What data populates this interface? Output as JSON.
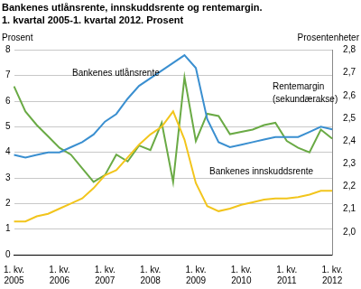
{
  "chart_data": {
    "type": "line",
    "title": "Bankenes utlånsrente, innskuddsrente og rentemargin.",
    "subtitle": "1. kvartal 2005-1. kvartal 2012. Prosent",
    "y_label": "Prosent",
    "y2_label": "Prosentenheter",
    "annotations": [
      "Bankenes utlånsrente",
      "Rentemargin",
      "(sekundærakse)",
      "Bankenes innskuddsrente"
    ],
    "categories": [
      "1. kv. 2005",
      null,
      null,
      null,
      "1. kv. 2006",
      null,
      null,
      null,
      "1. kv. 2007",
      null,
      null,
      null,
      "1. kv. 2008",
      null,
      null,
      null,
      "1. kv. 2009",
      null,
      null,
      null,
      "1. kv. 2010",
      null,
      null,
      null,
      "1. kv. 2011",
      null,
      null,
      null,
      "1. kv. 2012"
    ],
    "series": [
      {
        "name": "Bankenes utlånsrente",
        "color": "#3a8fd0",
        "marker": "none",
        "line_style": "solid",
        "values": [
          3.9,
          3.8,
          3.9,
          4.0,
          4.0,
          4.2,
          4.4,
          4.7,
          5.2,
          5.5,
          6.1,
          6.6,
          6.9,
          7.2,
          7.5,
          7.8,
          7.3,
          5.3,
          4.4,
          4.2,
          4.3,
          4.4,
          4.5,
          4.6,
          4.6,
          4.6,
          4.8,
          5.0,
          4.9
        ]
      },
      {
        "name": "Bankenes innskuddsrente",
        "color": "#f2c51c",
        "marker": "none",
        "line_style": "solid",
        "values": [
          1.3,
          1.3,
          1.5,
          1.6,
          1.8,
          2.0,
          2.2,
          2.6,
          3.1,
          3.3,
          3.8,
          4.3,
          4.7,
          5.0,
          5.6,
          4.5,
          2.8,
          1.9,
          1.7,
          1.8,
          1.95,
          2.05,
          2.15,
          2.2,
          2.2,
          2.25,
          2.35,
          2.5,
          2.5
        ]
      },
      {
        "name": "Rentemargin (sekundærakse)",
        "color": "#6aaa45",
        "marker": "none",
        "line_style": "solid",
        "axis": "y2",
        "values": [
          2.64,
          2.53,
          2.47,
          2.42,
          2.37,
          2.34,
          2.28,
          2.22,
          2.25,
          2.34,
          2.31,
          2.38,
          2.36,
          2.48,
          2.22,
          2.68,
          2.4,
          2.52,
          2.51,
          2.43,
          2.44,
          2.45,
          2.47,
          2.48,
          2.4,
          2.37,
          2.35,
          2.45,
          2.41
        ]
      }
    ],
    "ylim": [
      0,
      8
    ],
    "yticks": [
      0,
      1,
      2,
      3,
      4,
      5,
      6,
      7,
      8
    ],
    "y2lim": [
      1.9,
      2.8
    ],
    "y2ticks": [
      {
        "value": 2.0,
        "label": "2,0"
      },
      {
        "value": 2.1,
        "label": "2,1"
      },
      {
        "value": 2.2,
        "label": "2,2"
      },
      {
        "value": 2.3,
        "label": "2,3"
      },
      {
        "value": 2.4,
        "label": "2,4"
      },
      {
        "value": 2.5,
        "label": "2,5"
      },
      {
        "value": 2.6,
        "label": "2,6"
      },
      {
        "value": 2.7,
        "label": "2,7"
      },
      {
        "value": 2.8,
        "label": "2,8"
      }
    ],
    "grid": true,
    "legend": "none"
  }
}
